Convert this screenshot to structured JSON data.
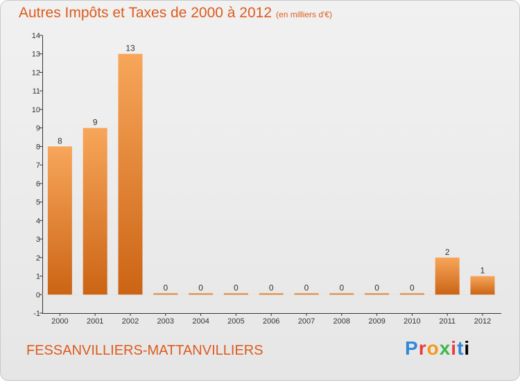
{
  "header": {
    "title": "Autres Impôts et Taxes de 2000 à 2012",
    "unit": "(en milliers d'€)"
  },
  "footer": {
    "commune": "FESSANVILLIERS-MATTANVILLIERS",
    "logo_letters": [
      "P",
      "r",
      "o",
      "x",
      "i",
      "t",
      "i"
    ]
  },
  "colors": {
    "bar_top": "#f7a65a",
    "bar_bottom": "#cc6415",
    "title": "#dd5a1c",
    "axis": "#333333"
  },
  "chart_data": {
    "type": "bar",
    "categories": [
      "2000",
      "2001",
      "2002",
      "2003",
      "2004",
      "2005",
      "2006",
      "2007",
      "2008",
      "2009",
      "2010",
      "2011",
      "2012"
    ],
    "values": [
      8,
      9,
      13,
      0,
      0,
      0,
      0,
      0,
      0,
      0,
      0,
      2,
      1
    ],
    "ylim": [
      -1,
      14
    ],
    "yticks": [
      -1,
      0,
      1,
      2,
      3,
      4,
      5,
      6,
      7,
      8,
      9,
      10,
      11,
      12,
      13,
      14
    ],
    "grid": false,
    "legend": "none"
  }
}
